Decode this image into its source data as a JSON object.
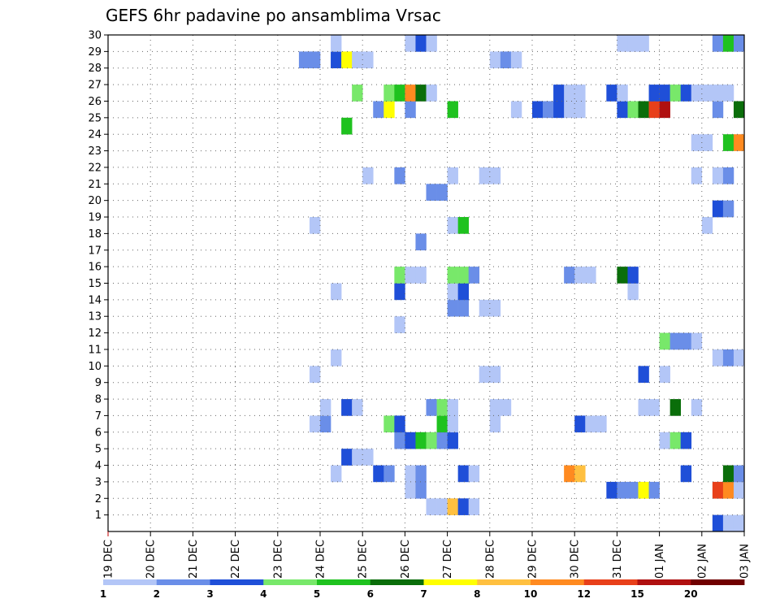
{
  "chart_data": {
    "type": "heatmap",
    "title": "GEFS 6hr padavine po ansamblima Vrsac",
    "xlabel": "",
    "ylabel": "",
    "x_tick_labels": [
      "19 DEC",
      "20 DEC",
      "21 DEC",
      "22 DEC",
      "23 DEC",
      "24 DEC",
      "25 DEC",
      "26 DEC",
      "27 DEC",
      "28 DEC",
      "29 DEC",
      "30 DEC",
      "31 DEC",
      "01 JAN",
      "02 JAN",
      "03 JAN"
    ],
    "y_tick_labels": [
      "1",
      "2",
      "3",
      "4",
      "5",
      "6",
      "7",
      "8",
      "9",
      "10",
      "11",
      "12",
      "13",
      "14",
      "15",
      "16",
      "17",
      "18",
      "19",
      "20",
      "21",
      "22",
      "23",
      "24",
      "25",
      "26",
      "27",
      "28",
      "29",
      "30"
    ],
    "xlim": [
      0,
      60
    ],
    "ylim": [
      0,
      30
    ],
    "x_unit": "6-hour steps from 19 DEC 00Z",
    "y_unit": "ensemble member",
    "legend_labels": [
      "1",
      "2",
      "3",
      "4",
      "5",
      "6",
      "7",
      "8",
      "10",
      "12",
      "15",
      "20"
    ],
    "color_scale": [
      "#b3c6f7",
      "#6a8ee8",
      "#1f4fd8",
      "#78e86a",
      "#1fc21f",
      "#0a6e0a",
      "#ffff00",
      "#ffc040",
      "#ff8a20",
      "#e8401a",
      "#b01010",
      "#700000"
    ],
    "cells": [
      [
        30,
        1,
        0
      ],
      [
        31,
        1,
        0
      ],
      [
        32,
        1,
        7
      ],
      [
        33,
        1,
        2
      ],
      [
        34,
        1,
        0
      ],
      [
        28,
        2,
        0
      ],
      [
        29,
        2,
        1
      ],
      [
        47,
        2,
        2
      ],
      [
        48,
        2,
        1
      ],
      [
        49,
        2,
        1
      ],
      [
        50,
        2,
        6
      ],
      [
        51,
        2,
        1
      ],
      [
        57,
        2,
        9
      ],
      [
        58,
        2,
        8
      ],
      [
        59,
        2,
        0
      ],
      [
        21,
        3,
        0
      ],
      [
        25,
        3,
        2
      ],
      [
        26,
        3,
        1
      ],
      [
        28,
        3,
        0
      ],
      [
        29,
        3,
        1
      ],
      [
        33,
        3,
        2
      ],
      [
        34,
        3,
        0
      ],
      [
        43,
        3,
        8
      ],
      [
        44,
        3,
        7
      ],
      [
        54,
        3,
        2
      ],
      [
        58,
        3,
        5
      ],
      [
        59,
        3,
        1
      ],
      [
        22,
        4,
        2
      ],
      [
        23,
        4,
        0
      ],
      [
        24,
        4,
        0
      ],
      [
        27,
        5,
        1
      ],
      [
        28,
        5,
        2
      ],
      [
        29,
        5,
        4
      ],
      [
        30,
        5,
        3
      ],
      [
        31,
        5,
        1
      ],
      [
        32,
        5,
        2
      ],
      [
        52,
        5,
        0
      ],
      [
        53,
        5,
        3
      ],
      [
        54,
        5,
        2
      ],
      [
        19,
        6,
        0
      ],
      [
        20,
        6,
        1
      ],
      [
        26,
        6,
        3
      ],
      [
        27,
        6,
        2
      ],
      [
        31,
        6,
        4
      ],
      [
        32,
        6,
        0
      ],
      [
        36,
        6,
        0
      ],
      [
        44,
        6,
        2
      ],
      [
        45,
        6,
        0
      ],
      [
        46,
        6,
        0
      ],
      [
        20,
        7,
        0
      ],
      [
        22,
        7,
        2
      ],
      [
        23,
        7,
        0
      ],
      [
        30,
        7,
        1
      ],
      [
        31,
        7,
        3
      ],
      [
        32,
        7,
        0
      ],
      [
        36,
        7,
        0
      ],
      [
        37,
        7,
        0
      ],
      [
        50,
        7,
        0
      ],
      [
        51,
        7,
        0
      ],
      [
        53,
        7,
        5
      ],
      [
        55,
        7,
        0
      ],
      [
        35,
        9,
        0
      ],
      [
        36,
        9,
        0
      ],
      [
        19,
        9,
        0
      ],
      [
        50,
        9,
        2
      ],
      [
        52,
        9,
        0
      ],
      [
        21,
        10,
        0
      ],
      [
        57,
        10,
        0
      ],
      [
        58,
        10,
        1
      ],
      [
        59,
        10,
        0
      ],
      [
        52,
        11,
        3
      ],
      [
        53,
        11,
        1
      ],
      [
        54,
        11,
        1
      ],
      [
        55,
        11,
        0
      ],
      [
        27,
        12,
        0
      ],
      [
        32,
        13,
        1
      ],
      [
        33,
        13,
        1
      ],
      [
        35,
        13,
        0
      ],
      [
        36,
        13,
        0
      ],
      [
        21,
        14,
        0
      ],
      [
        27,
        14,
        2
      ],
      [
        32,
        14,
        0
      ],
      [
        33,
        14,
        2
      ],
      [
        49,
        14,
        0
      ],
      [
        27,
        15,
        3
      ],
      [
        28,
        15,
        0
      ],
      [
        29,
        15,
        0
      ],
      [
        32,
        15,
        3
      ],
      [
        33,
        15,
        3
      ],
      [
        34,
        15,
        1
      ],
      [
        43,
        15,
        1
      ],
      [
        44,
        15,
        0
      ],
      [
        45,
        15,
        0
      ],
      [
        48,
        15,
        5
      ],
      [
        49,
        15,
        2
      ],
      [
        29,
        17,
        1
      ],
      [
        19,
        18,
        0
      ],
      [
        32,
        18,
        0
      ],
      [
        33,
        18,
        4
      ],
      [
        56,
        18,
        0
      ],
      [
        57,
        19,
        2
      ],
      [
        58,
        19,
        1
      ],
      [
        30,
        20,
        1
      ],
      [
        31,
        20,
        1
      ],
      [
        24,
        21,
        0
      ],
      [
        27,
        21,
        1
      ],
      [
        32,
        21,
        0
      ],
      [
        35,
        21,
        0
      ],
      [
        36,
        21,
        0
      ],
      [
        55,
        21,
        0
      ],
      [
        57,
        21,
        0
      ],
      [
        58,
        21,
        1
      ],
      [
        55,
        23,
        0
      ],
      [
        56,
        23,
        0
      ],
      [
        58,
        23,
        4
      ],
      [
        59,
        23,
        8
      ],
      [
        22,
        24,
        4
      ],
      [
        25,
        25,
        1
      ],
      [
        26,
        25,
        6
      ],
      [
        28,
        25,
        1
      ],
      [
        32,
        25,
        4
      ],
      [
        38,
        25,
        0
      ],
      [
        40,
        25,
        2
      ],
      [
        41,
        25,
        1
      ],
      [
        42,
        25,
        2
      ],
      [
        43,
        25,
        0
      ],
      [
        44,
        25,
        0
      ],
      [
        48,
        25,
        2
      ],
      [
        49,
        25,
        3
      ],
      [
        50,
        25,
        5
      ],
      [
        51,
        25,
        9
      ],
      [
        52,
        25,
        10
      ],
      [
        57,
        25,
        1
      ],
      [
        59,
        25,
        5
      ],
      [
        23,
        26,
        3
      ],
      [
        26,
        26,
        3
      ],
      [
        27,
        26,
        4
      ],
      [
        28,
        26,
        8
      ],
      [
        29,
        26,
        5
      ],
      [
        30,
        26,
        0
      ],
      [
        42,
        26,
        2
      ],
      [
        43,
        26,
        0
      ],
      [
        44,
        26,
        0
      ],
      [
        47,
        26,
        2
      ],
      [
        48,
        26,
        0
      ],
      [
        51,
        26,
        2
      ],
      [
        52,
        26,
        2
      ],
      [
        53,
        26,
        3
      ],
      [
        54,
        26,
        2
      ],
      [
        55,
        26,
        0
      ],
      [
        56,
        26,
        0
      ],
      [
        57,
        26,
        0
      ],
      [
        58,
        26,
        0
      ],
      [
        18,
        28,
        1
      ],
      [
        19,
        28,
        1
      ],
      [
        21,
        28,
        2
      ],
      [
        22,
        28,
        6
      ],
      [
        23,
        28,
        0
      ],
      [
        24,
        28,
        0
      ],
      [
        36,
        28,
        0
      ],
      [
        37,
        28,
        1
      ],
      [
        38,
        28,
        0
      ],
      [
        21,
        29,
        0
      ],
      [
        28,
        29,
        0
      ],
      [
        29,
        29,
        2
      ],
      [
        30,
        29,
        0
      ],
      [
        48,
        29,
        0
      ],
      [
        49,
        29,
        0
      ],
      [
        50,
        29,
        0
      ],
      [
        57,
        29,
        1
      ],
      [
        58,
        29,
        4
      ],
      [
        59,
        29,
        1
      ],
      [
        57,
        0,
        2
      ],
      [
        58,
        0,
        0
      ],
      [
        59,
        0,
        0
      ]
    ]
  }
}
